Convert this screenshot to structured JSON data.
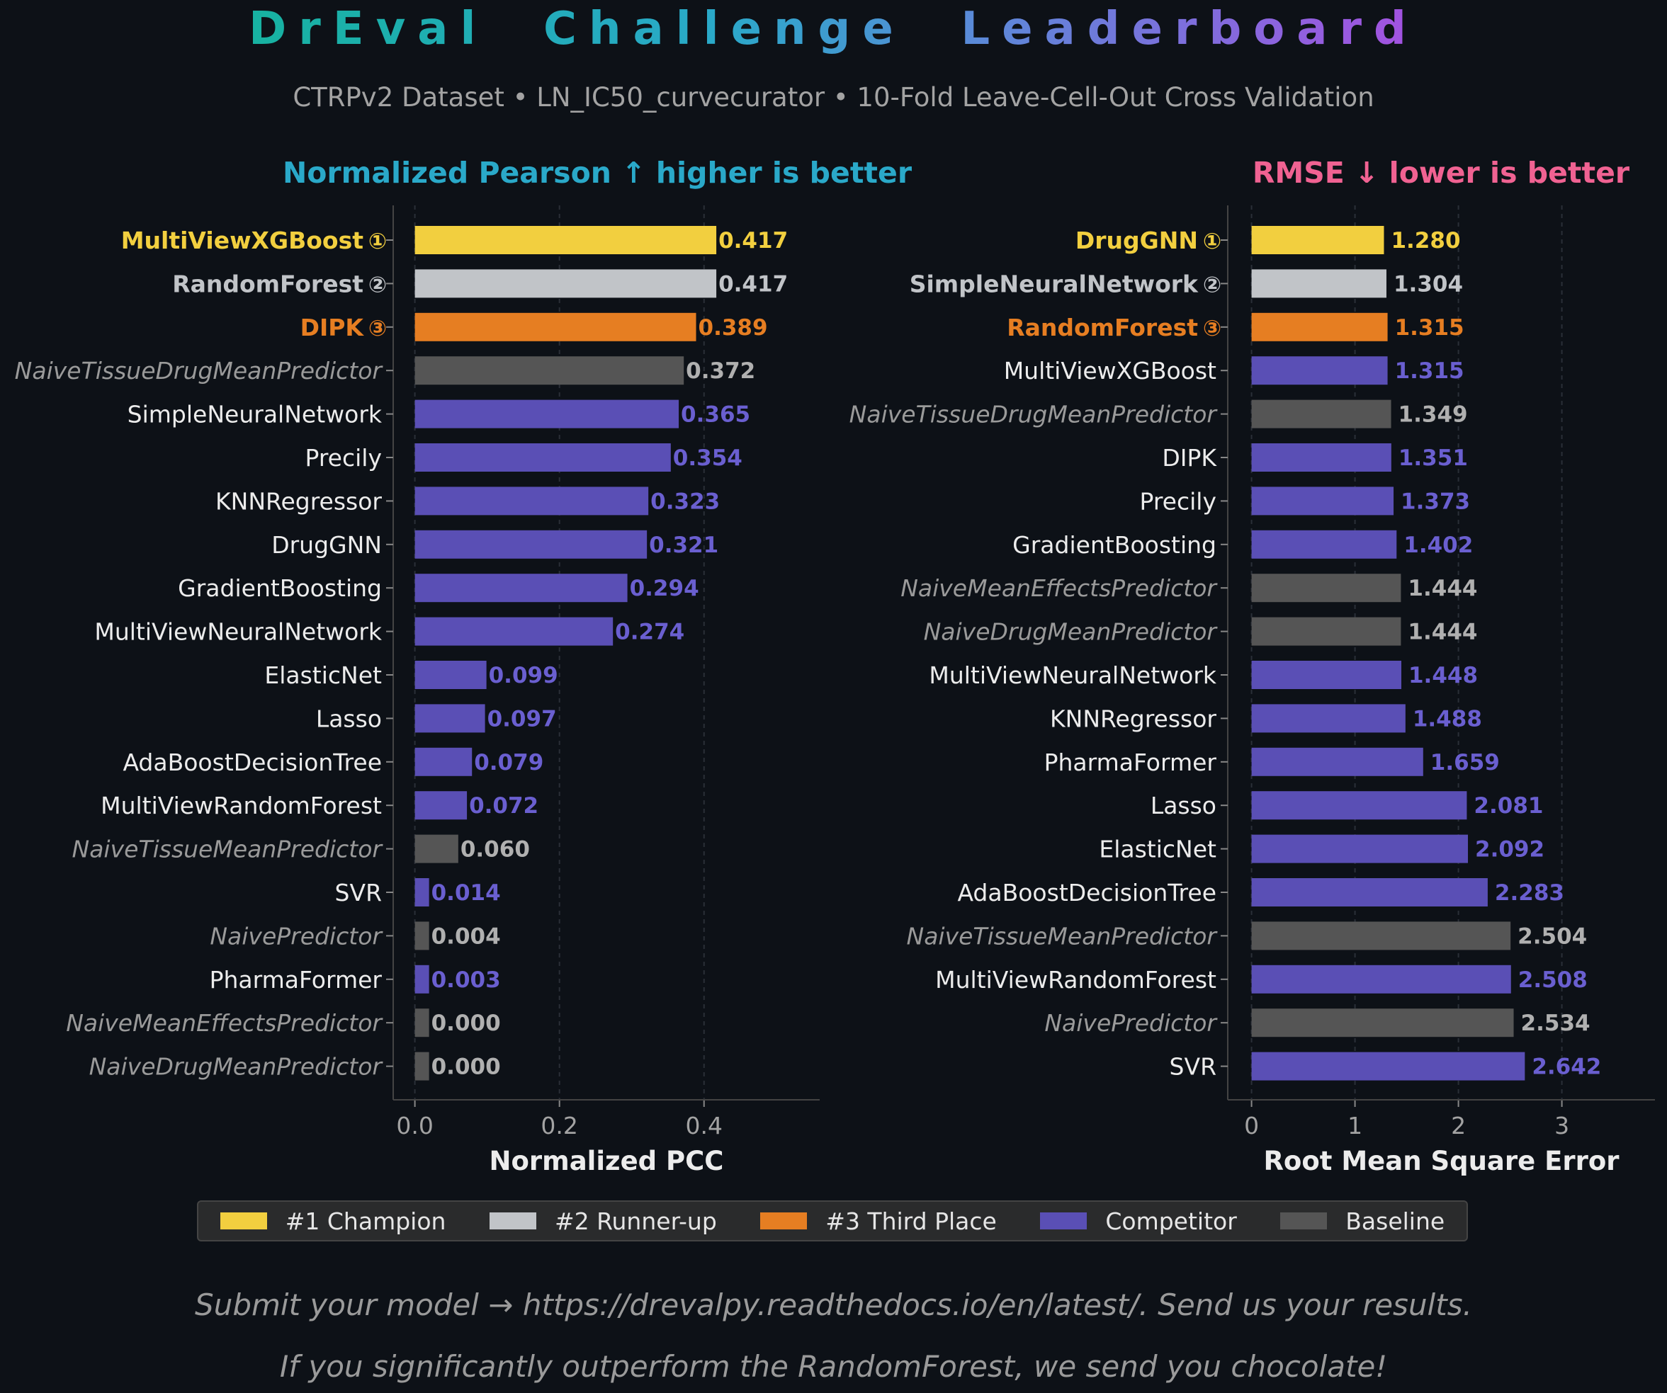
{
  "title": "DrEval  Challenge  Leaderboard",
  "subtitle": "CTRPv2 Dataset  •  LN_IC50_curvecurator  •  10-Fold Leave-Cell-Out Cross Validation",
  "colors": {
    "champion": "#f2cf3f",
    "runner_up": "#c1c4c8",
    "third": "#e67e22",
    "competitor": "#5a4fb5",
    "baseline": "#555555",
    "left_header": "#2aa9c9",
    "right_header": "#f06292"
  },
  "legend": [
    {
      "label": "#1 Champion",
      "color": "#f2cf3f"
    },
    {
      "label": "#2 Runner-up",
      "color": "#c1c4c8"
    },
    {
      "label": "#3 Third Place",
      "color": "#e67e22"
    },
    {
      "label": "Competitor",
      "color": "#5a4fb5"
    },
    {
      "label": "Baseline",
      "color": "#555555"
    }
  ],
  "footer": [
    "Submit your model → https://drevalpy.readthedocs.io/en/latest/. Send us your results.",
    "If you significantly outperform the RandomForest, we send you chocolate!"
  ],
  "rank_badges": [
    "①",
    "②",
    "③"
  ],
  "chart_data": [
    {
      "type": "bar",
      "orientation": "horizontal",
      "header": "Normalized Pearson  ↑  higher is better",
      "xlabel": "Normalized PCC",
      "xlim": [
        -0.03,
        0.56
      ],
      "xticks": [
        0.0,
        0.2,
        0.4
      ],
      "xtick_labels": [
        "0.0",
        "0.2",
        "0.4"
      ],
      "grid": true,
      "entries": [
        {
          "model": "MultiViewXGBoost",
          "value": 0.417,
          "label": "0.417",
          "kind": "champion"
        },
        {
          "model": "RandomForest",
          "value": 0.417,
          "label": "0.417",
          "kind": "runner_up"
        },
        {
          "model": "DIPK",
          "value": 0.389,
          "label": "0.389",
          "kind": "third"
        },
        {
          "model": "NaiveTissueDrugMeanPredictor",
          "value": 0.372,
          "label": "0.372",
          "kind": "baseline"
        },
        {
          "model": "SimpleNeuralNetwork",
          "value": 0.365,
          "label": "0.365",
          "kind": "competitor"
        },
        {
          "model": "Precily",
          "value": 0.354,
          "label": "0.354",
          "kind": "competitor"
        },
        {
          "model": "KNNRegressor",
          "value": 0.323,
          "label": "0.323",
          "kind": "competitor"
        },
        {
          "model": "DrugGNN",
          "value": 0.321,
          "label": "0.321",
          "kind": "competitor"
        },
        {
          "model": "GradientBoosting",
          "value": 0.294,
          "label": "0.294",
          "kind": "competitor"
        },
        {
          "model": "MultiViewNeuralNetwork",
          "value": 0.274,
          "label": "0.274",
          "kind": "competitor"
        },
        {
          "model": "ElasticNet",
          "value": 0.099,
          "label": "0.099",
          "kind": "competitor"
        },
        {
          "model": "Lasso",
          "value": 0.097,
          "label": "0.097",
          "kind": "competitor"
        },
        {
          "model": "AdaBoostDecisionTree",
          "value": 0.079,
          "label": "0.079",
          "kind": "competitor"
        },
        {
          "model": "MultiViewRandomForest",
          "value": 0.072,
          "label": "0.072",
          "kind": "competitor"
        },
        {
          "model": "NaiveTissueMeanPredictor",
          "value": 0.06,
          "label": "0.060",
          "kind": "baseline"
        },
        {
          "model": "SVR",
          "value": 0.014,
          "label": "0.014",
          "kind": "competitor"
        },
        {
          "model": "NaivePredictor",
          "value": 0.004,
          "label": "0.004",
          "kind": "baseline"
        },
        {
          "model": "PharmaFormer",
          "value": 0.003,
          "label": "0.003",
          "kind": "competitor"
        },
        {
          "model": "NaiveMeanEffectsPredictor",
          "value": 0.0,
          "label": "0.000",
          "kind": "baseline"
        },
        {
          "model": "NaiveDrugMeanPredictor",
          "value": 0.0,
          "label": "0.000",
          "kind": "baseline"
        }
      ]
    },
    {
      "type": "bar",
      "orientation": "horizontal",
      "header": "RMSE  ↓  lower is better",
      "xlabel": "Root Mean Square Error",
      "xlim": [
        -0.23,
        3.9
      ],
      "xticks": [
        0,
        1,
        2,
        3
      ],
      "xtick_labels": [
        "0",
        "1",
        "2",
        "3"
      ],
      "grid": true,
      "entries": [
        {
          "model": "DrugGNN",
          "value": 1.28,
          "label": "1.280",
          "kind": "champion"
        },
        {
          "model": "SimpleNeuralNetwork",
          "value": 1.304,
          "label": "1.304",
          "kind": "runner_up"
        },
        {
          "model": "RandomForest",
          "value": 1.315,
          "label": "1.315",
          "kind": "third"
        },
        {
          "model": "MultiViewXGBoost",
          "value": 1.315,
          "label": "1.315",
          "kind": "competitor"
        },
        {
          "model": "NaiveTissueDrugMeanPredictor",
          "value": 1.349,
          "label": "1.349",
          "kind": "baseline"
        },
        {
          "model": "DIPK",
          "value": 1.351,
          "label": "1.351",
          "kind": "competitor"
        },
        {
          "model": "Precily",
          "value": 1.373,
          "label": "1.373",
          "kind": "competitor"
        },
        {
          "model": "GradientBoosting",
          "value": 1.402,
          "label": "1.402",
          "kind": "competitor"
        },
        {
          "model": "NaiveMeanEffectsPredictor",
          "value": 1.444,
          "label": "1.444",
          "kind": "baseline"
        },
        {
          "model": "NaiveDrugMeanPredictor",
          "value": 1.444,
          "label": "1.444",
          "kind": "baseline"
        },
        {
          "model": "MultiViewNeuralNetwork",
          "value": 1.448,
          "label": "1.448",
          "kind": "competitor"
        },
        {
          "model": "KNNRegressor",
          "value": 1.488,
          "label": "1.488",
          "kind": "competitor"
        },
        {
          "model": "PharmaFormer",
          "value": 1.659,
          "label": "1.659",
          "kind": "competitor"
        },
        {
          "model": "Lasso",
          "value": 2.081,
          "label": "2.081",
          "kind": "competitor"
        },
        {
          "model": "ElasticNet",
          "value": 2.092,
          "label": "2.092",
          "kind": "competitor"
        },
        {
          "model": "AdaBoostDecisionTree",
          "value": 2.283,
          "label": "2.283",
          "kind": "competitor"
        },
        {
          "model": "NaiveTissueMeanPredictor",
          "value": 2.504,
          "label": "2.504",
          "kind": "baseline"
        },
        {
          "model": "MultiViewRandomForest",
          "value": 2.508,
          "label": "2.508",
          "kind": "competitor"
        },
        {
          "model": "NaivePredictor",
          "value": 2.534,
          "label": "2.534",
          "kind": "baseline"
        },
        {
          "model": "SVR",
          "value": 2.642,
          "label": "2.642",
          "kind": "competitor"
        }
      ]
    }
  ]
}
